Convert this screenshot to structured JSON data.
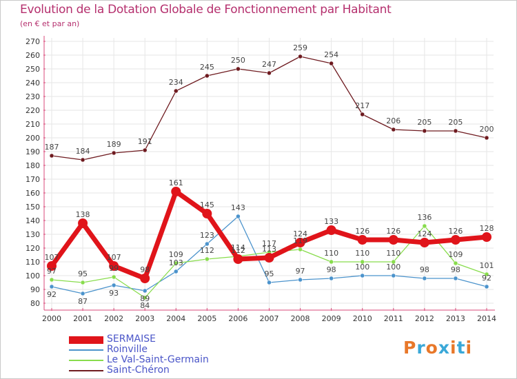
{
  "title": "Evolution de la Dotation Globale de Fonctionnement par Habitant",
  "subtitle": "(en € et par an)",
  "logo": {
    "text": "Proxiti",
    "colors": [
      "#e8782a",
      "#3aa8d8",
      "#e8782a",
      "#3aa8d8",
      "#e8782a",
      "#3aa8d8",
      "#e8782a"
    ]
  },
  "chart_data": {
    "type": "line",
    "x": [
      "2000",
      "2001",
      "2002",
      "2003",
      "2004",
      "2005",
      "2006",
      "2007",
      "2008",
      "2009",
      "2010",
      "2011",
      "2012",
      "2013",
      "2014"
    ],
    "ylim": [
      80,
      270
    ],
    "ytick_step": 10,
    "grid": true,
    "legend_position": "bottom-left",
    "series": [
      {
        "name": "SERMAISE",
        "color": "#e0141a",
        "values": [
          107,
          138,
          107,
          98,
          161,
          145,
          112,
          113,
          124,
          133,
          126,
          126,
          124,
          126,
          128
        ]
      },
      {
        "name": "Roinville",
        "color": "#4b93cc",
        "values": [
          92,
          87,
          93,
          89,
          103,
          123,
          143,
          95,
          97,
          98,
          100,
          100,
          98,
          98,
          92
        ]
      },
      {
        "name": "Le Val-Saint-Germain",
        "color": "#88dc4c",
        "values": [
          97,
          95,
          99,
          84,
          109,
          112,
          114,
          117,
          119,
          110,
          110,
          110,
          136,
          109,
          101
        ]
      },
      {
        "name": "Saint-Chéron",
        "color": "#6e1a1f",
        "values": [
          187,
          184,
          189,
          191,
          234,
          245,
          250,
          247,
          259,
          254,
          217,
          206,
          205,
          205,
          200
        ]
      }
    ]
  }
}
